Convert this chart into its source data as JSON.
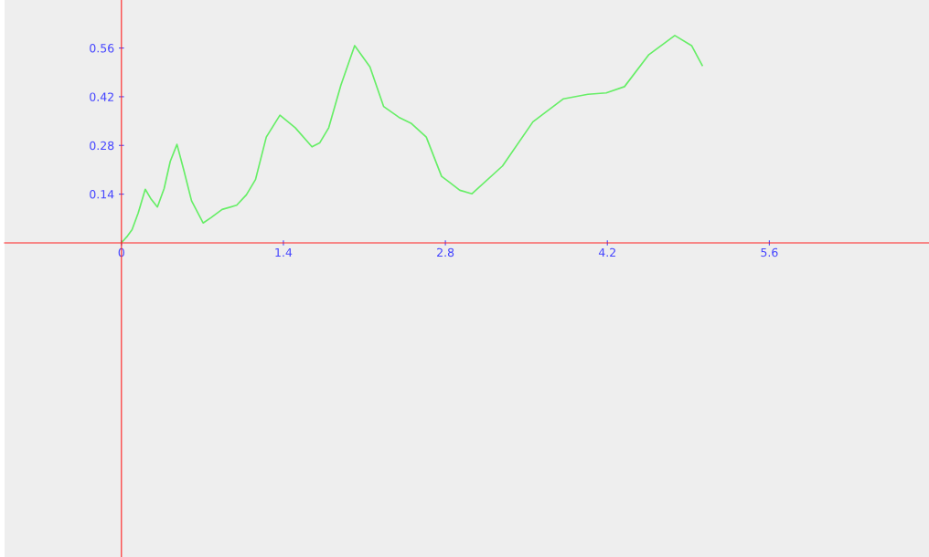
{
  "chart_data": {
    "type": "line",
    "color": "#66ee66",
    "x": [
      0,
      0.053,
      0.092,
      0.145,
      0.206,
      0.258,
      0.311,
      0.369,
      0.422,
      0.48,
      0.54,
      0.606,
      0.706,
      0.777,
      0.87,
      0.996,
      1.08,
      1.159,
      1.252,
      1.37,
      1.502,
      1.647,
      1.713,
      1.792,
      1.897,
      2.016,
      2.148,
      2.266,
      2.398,
      2.503,
      2.635,
      2.767,
      2.82,
      2.925,
      3.03,
      3.294,
      3.557,
      3.821,
      4.032,
      4.19,
      4.348,
      4.559,
      4.783,
      4.928,
      5.02
    ],
    "values": [
      0,
      0.02,
      0.038,
      0.086,
      0.154,
      0.125,
      0.103,
      0.156,
      0.234,
      0.283,
      0.208,
      0.121,
      0.057,
      0.073,
      0.096,
      0.108,
      0.138,
      0.182,
      0.304,
      0.367,
      0.331,
      0.276,
      0.287,
      0.331,
      0.453,
      0.567,
      0.506,
      0.392,
      0.361,
      0.344,
      0.304,
      0.191,
      0.178,
      0.151,
      0.141,
      0.221,
      0.348,
      0.414,
      0.427,
      0.431,
      0.449,
      0.541,
      0.596,
      0.567,
      0.51
    ],
    "xlim": [
      -1.01,
      6.98
    ],
    "ylim": [
      -0.903,
      0.698
    ],
    "xticks": [
      0,
      1.4,
      2.8,
      4.2,
      5.6
    ],
    "yticks": [
      0.14,
      0.28,
      0.42,
      0.56
    ],
    "grid": false,
    "marker": "none"
  }
}
